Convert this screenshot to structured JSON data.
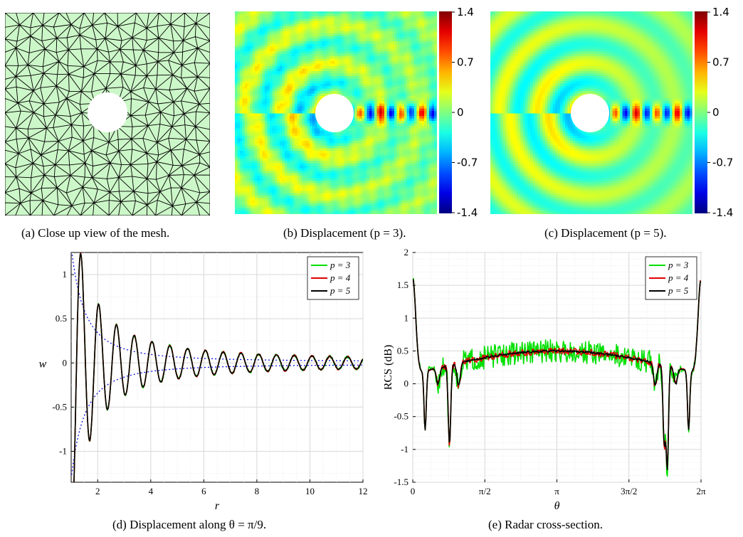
{
  "captions": {
    "a": "(a) Close up view of the mesh.",
    "b": "(b) Displacement (p = 3).",
    "c": "(c) Displacement (p = 5).",
    "d": "(d) Displacement along θ = π/9.",
    "e": "(e) Radar cross-section."
  },
  "colorbar": {
    "ticks": [
      "1.4",
      "0.7",
      "0",
      "-0.7",
      "-1.4"
    ],
    "range": [
      -1.4,
      1.4
    ]
  },
  "colors": {
    "mesh_fill": "#ccf7c8",
    "mesh_line": "#000000",
    "p3": "#00e000",
    "p4": "#e00000",
    "p5": "#000000",
    "envelope": "#0000e0"
  },
  "chart_data": [
    {
      "type": "line",
      "panel": "d",
      "xlabel": "r",
      "ylabel": "w",
      "xlim": [
        1,
        12
      ],
      "ylim": [
        -1.35,
        1.25
      ],
      "xticks": [
        2,
        4,
        6,
        8,
        10,
        12
      ],
      "yticks": [
        -1,
        -0.5,
        0,
        0.5,
        1
      ],
      "grid": true,
      "legend_position": "top-right",
      "series": [
        {
          "name": "p = 3",
          "color": "#00e000"
        },
        {
          "name": "p = 4",
          "color": "#e00000"
        },
        {
          "name": "p = 5",
          "color": "#000000"
        }
      ],
      "envelope": "±1.3/r² (dotted blue)",
      "peaks_p5": [
        [
          1.0,
          -1.15
        ],
        [
          1.37,
          1.2
        ],
        [
          1.69,
          -0.92
        ],
        [
          2.03,
          0.71
        ],
        [
          2.37,
          -0.57
        ],
        [
          2.7,
          0.45
        ],
        [
          3.03,
          -0.37
        ],
        [
          3.37,
          0.3
        ]
      ]
    },
    {
      "type": "line",
      "panel": "e",
      "xlabel": "θ",
      "ylabel": "RCS (dB)",
      "xlim": [
        0,
        6.2832
      ],
      "ylim": [
        -1.5,
        2
      ],
      "xtick_labels": [
        "0",
        "π/2",
        "π",
        "3π/2",
        "2π"
      ],
      "yticks": [
        -1.5,
        -1,
        -0.5,
        0,
        0.5,
        1,
        1.5,
        2
      ],
      "grid": true,
      "legend_position": "top-right",
      "series": [
        {
          "name": "p = 3",
          "color": "#00e000"
        },
        {
          "name": "p = 4",
          "color": "#e00000"
        },
        {
          "name": "p = 5",
          "color": "#000000"
        }
      ],
      "notable_values": {
        "start": 1.55,
        "first_minimum": [
          0.27,
          -0.8
        ],
        "second_minimum": [
          0.8,
          -1.3
        ],
        "plateau": 0.5,
        "minimum_near_5_5": [
          5.55,
          -1.5
        ],
        "end": 1.55
      }
    }
  ]
}
